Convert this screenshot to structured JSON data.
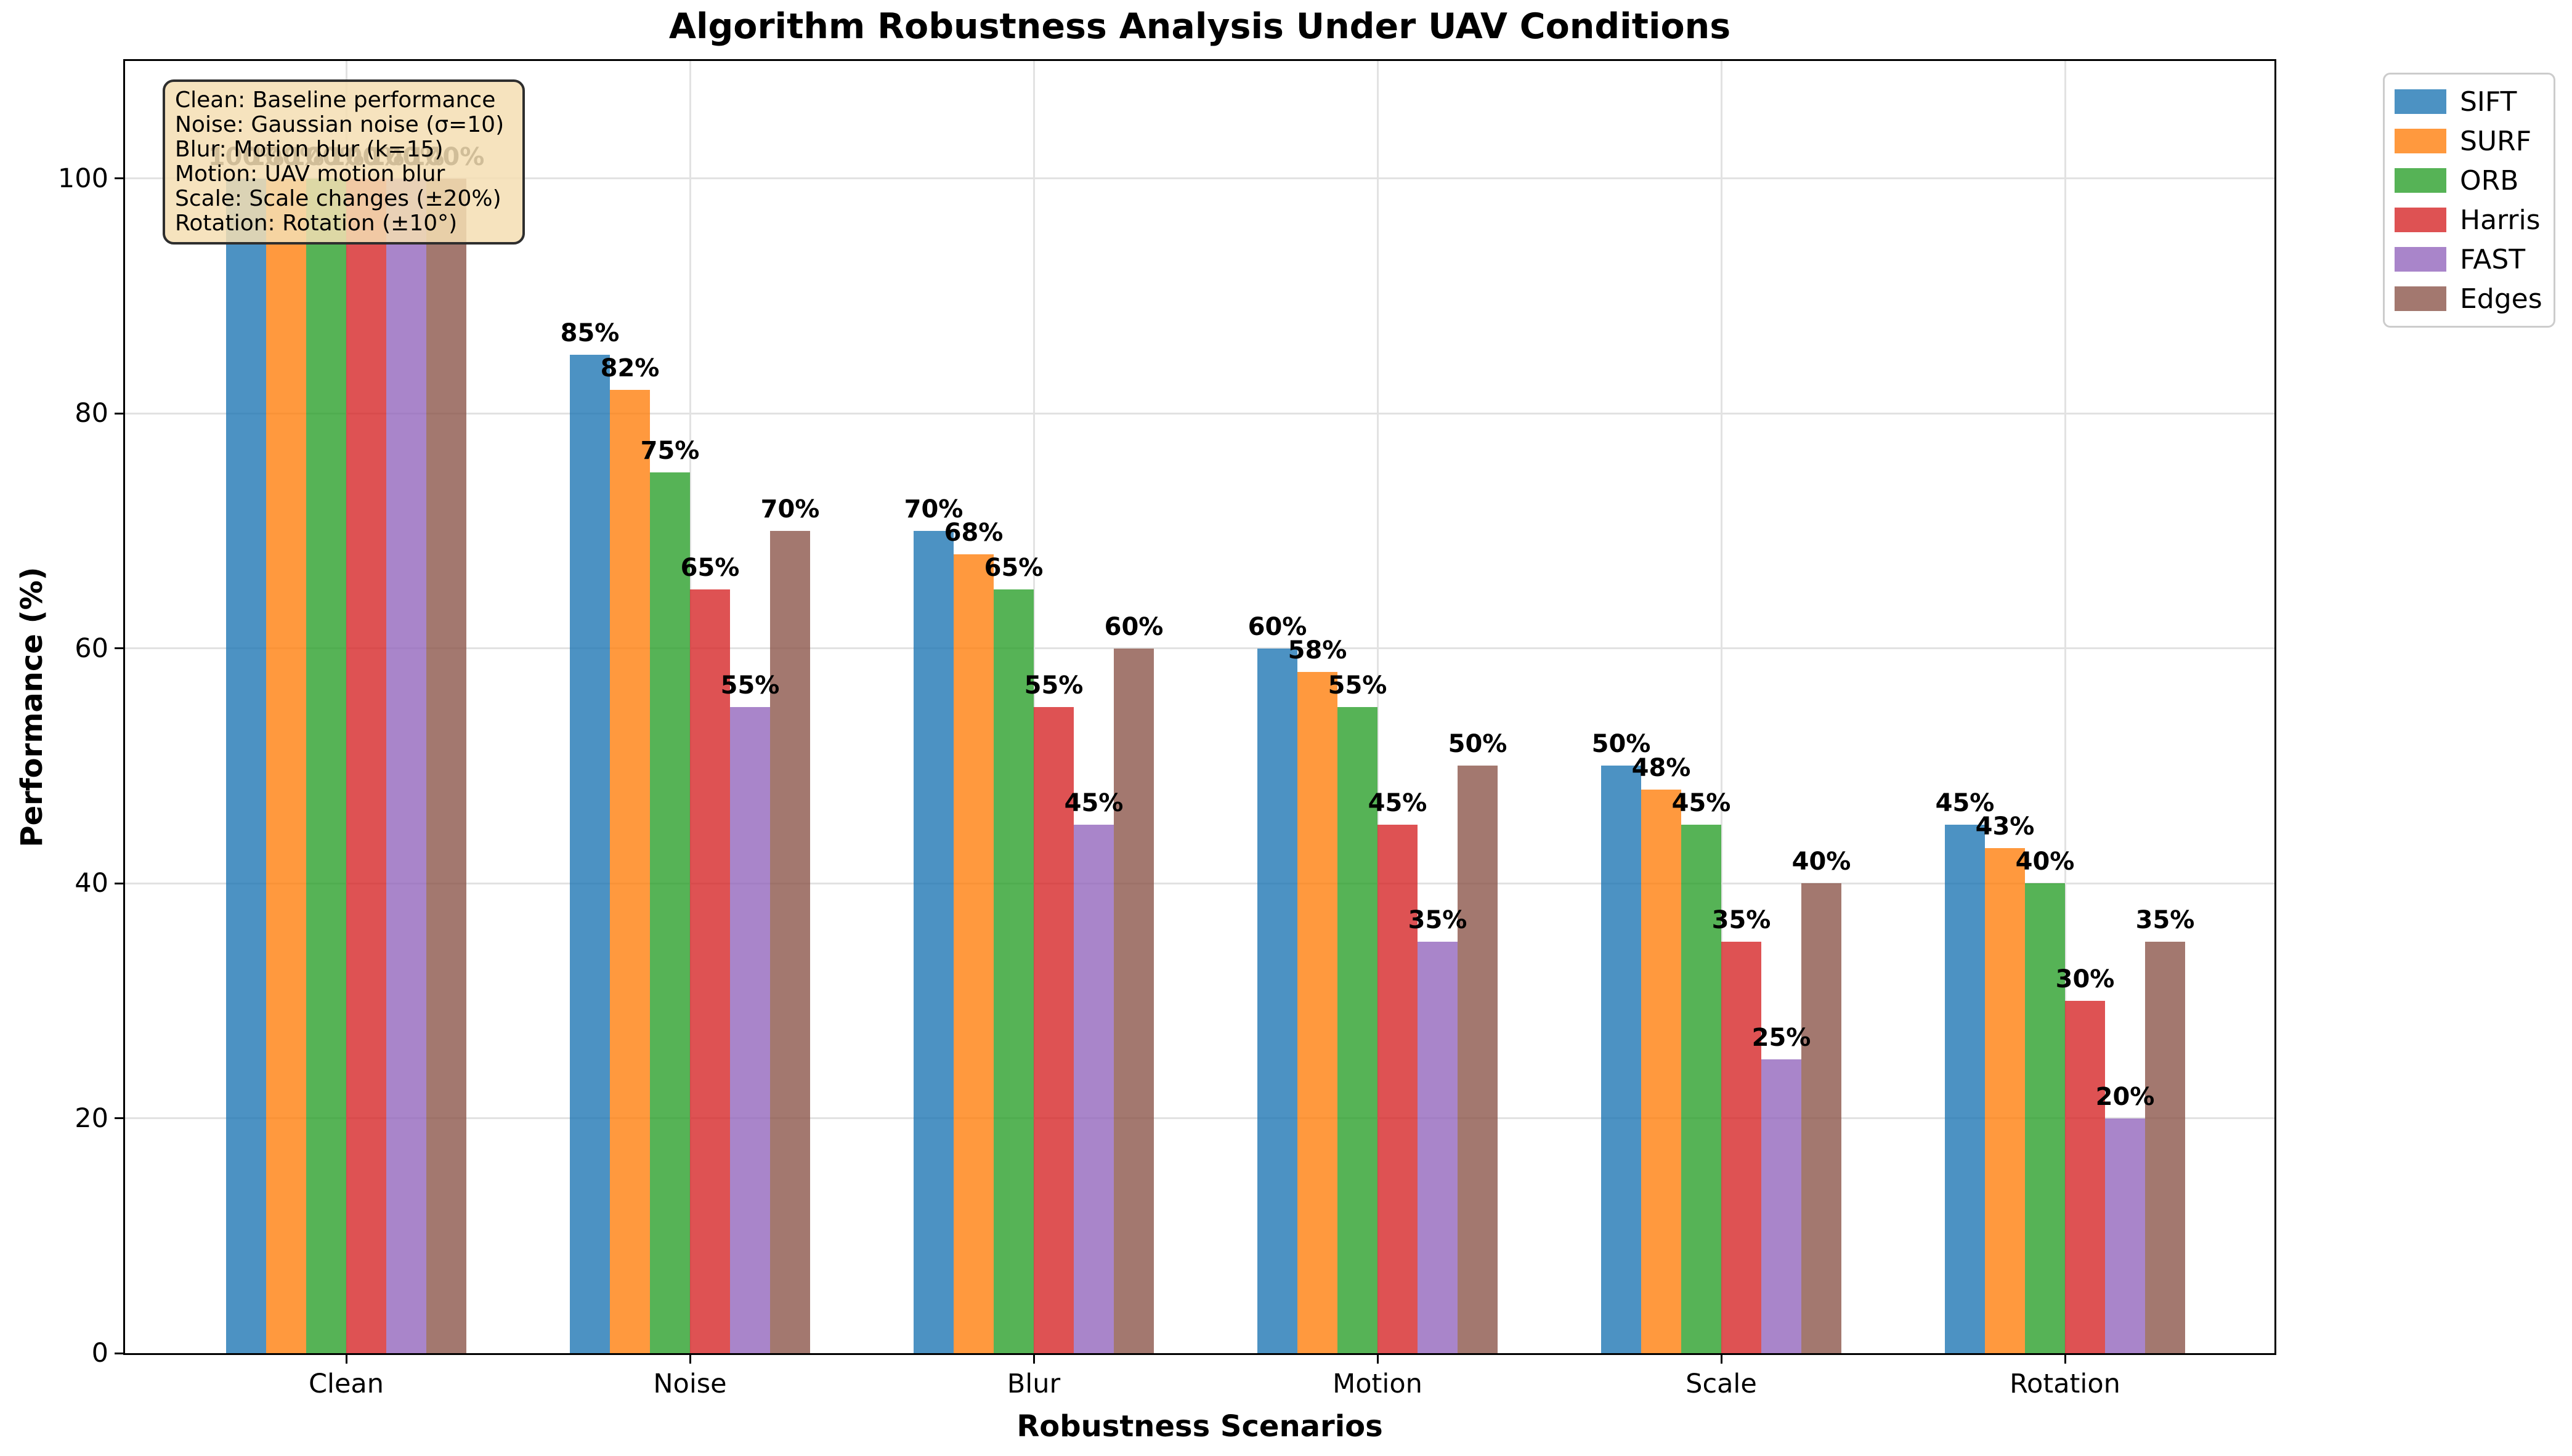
{
  "chart_data": {
    "type": "bar",
    "title": "Algorithm Robustness Analysis Under UAV Conditions",
    "xlabel": "Robustness Scenarios",
    "ylabel": "Performance (%)",
    "categories": [
      "Clean",
      "Noise",
      "Blur",
      "Motion",
      "Scale",
      "Rotation"
    ],
    "series": [
      {
        "name": "SIFT",
        "color": "rgba(31,119,180,0.8)",
        "values": [
          100,
          85,
          70,
          60,
          50,
          45
        ]
      },
      {
        "name": "SURF",
        "color": "rgba(255,127,14,0.8)",
        "values": [
          100,
          82,
          68,
          58,
          48,
          43
        ]
      },
      {
        "name": "ORB",
        "color": "rgba(44,160,44,0.8)",
        "values": [
          100,
          75,
          65,
          55,
          45,
          40
        ]
      },
      {
        "name": "Harris",
        "color": "rgba(214,39,40,0.8)",
        "values": [
          100,
          65,
          55,
          45,
          35,
          30
        ]
      },
      {
        "name": "FAST",
        "color": "rgba(148,103,189,0.8)",
        "values": [
          100,
          55,
          45,
          35,
          25,
          20
        ]
      },
      {
        "name": "Edges",
        "color": "rgba(140,86,75,0.8)",
        "values": [
          100,
          70,
          60,
          50,
          40,
          35
        ]
      }
    ],
    "yticks": [
      0,
      20,
      40,
      60,
      80,
      100
    ],
    "ylim": [
      0,
      110
    ],
    "grid": true,
    "legend_position": "outside-upper-right",
    "bar_label_suffix": "%"
  },
  "annotation": {
    "lines": [
      "Clean: Baseline performance",
      "Noise: Gaussian noise (σ=10)",
      "Blur: Motion blur (k=15)",
      "Motion: UAV motion blur",
      "Scale: Scale changes (±20%)",
      "Rotation: Rotation (±10°)"
    ],
    "background": "#F5DEB3",
    "border_color": "#2e2e2e"
  }
}
